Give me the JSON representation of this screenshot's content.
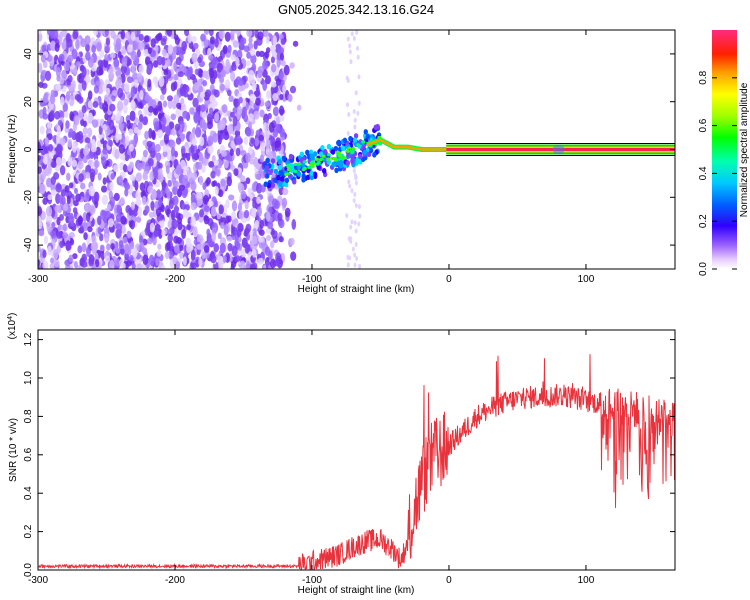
{
  "title": "GN05.2025.342.13.16.G24",
  "chart_data": [
    {
      "type": "heatmap",
      "xlabel": "Height of straight line (km)",
      "ylabel": "Frequency (Hz)",
      "xlim": [
        -300,
        165
      ],
      "ylim": [
        -50,
        50
      ],
      "xticks": [
        -300,
        -200,
        -100,
        0,
        100
      ],
      "yticks": [
        -40,
        -20,
        0,
        20,
        40
      ],
      "colorbar": {
        "label": "Normalized spectral amplitude",
        "range": [
          0,
          1
        ],
        "ticks": [
          0.0,
          0.2,
          0.4,
          0.6,
          0.8
        ]
      },
      "ridge": {
        "description_x": [
          -135,
          -120,
          -100,
          -80,
          -60,
          -50,
          -40,
          -30,
          -20,
          -10,
          0,
          80,
          165
        ],
        "frequency": [
          -10,
          -9,
          -6,
          -3,
          2,
          4,
          1,
          1,
          0,
          0,
          0,
          0,
          0
        ]
      },
      "noise_region_x": [
        -300,
        -120
      ]
    },
    {
      "type": "line",
      "xlabel": "Height of straight line (km)",
      "ylabel": "SNR (10 * v/v)",
      "y_multiplier": "(x10^4)",
      "xlim": [
        -300,
        165
      ],
      "ylim": [
        0,
        1.25
      ],
      "xticks": [
        -300,
        -200,
        -100,
        0,
        100
      ],
      "yticks": [
        0.0,
        0.2,
        0.4,
        0.6,
        0.8,
        1.0,
        1.2
      ],
      "series": [
        {
          "color": "#e8323c",
          "envelope_x": [
            -300,
            -250,
            -200,
            -150,
            -110,
            -100,
            -90,
            -80,
            -70,
            -60,
            -50,
            -40,
            -35,
            -30,
            -25,
            -20,
            -15,
            -10,
            -5,
            0,
            10,
            20,
            30,
            40,
            50,
            60,
            70,
            80,
            90,
            100,
            110,
            120,
            130,
            140,
            150,
            165
          ],
          "envelope_y": [
            0.02,
            0.02,
            0.02,
            0.02,
            0.02,
            0.04,
            0.06,
            0.08,
            0.12,
            0.15,
            0.16,
            0.1,
            0.05,
            0.15,
            0.32,
            0.45,
            0.55,
            0.6,
            0.62,
            0.65,
            0.72,
            0.8,
            0.84,
            0.87,
            0.89,
            0.9,
            0.9,
            0.91,
            0.9,
            0.88,
            0.87,
            0.86,
            0.84,
            0.83,
            0.8,
            0.78
          ]
        }
      ]
    }
  ]
}
